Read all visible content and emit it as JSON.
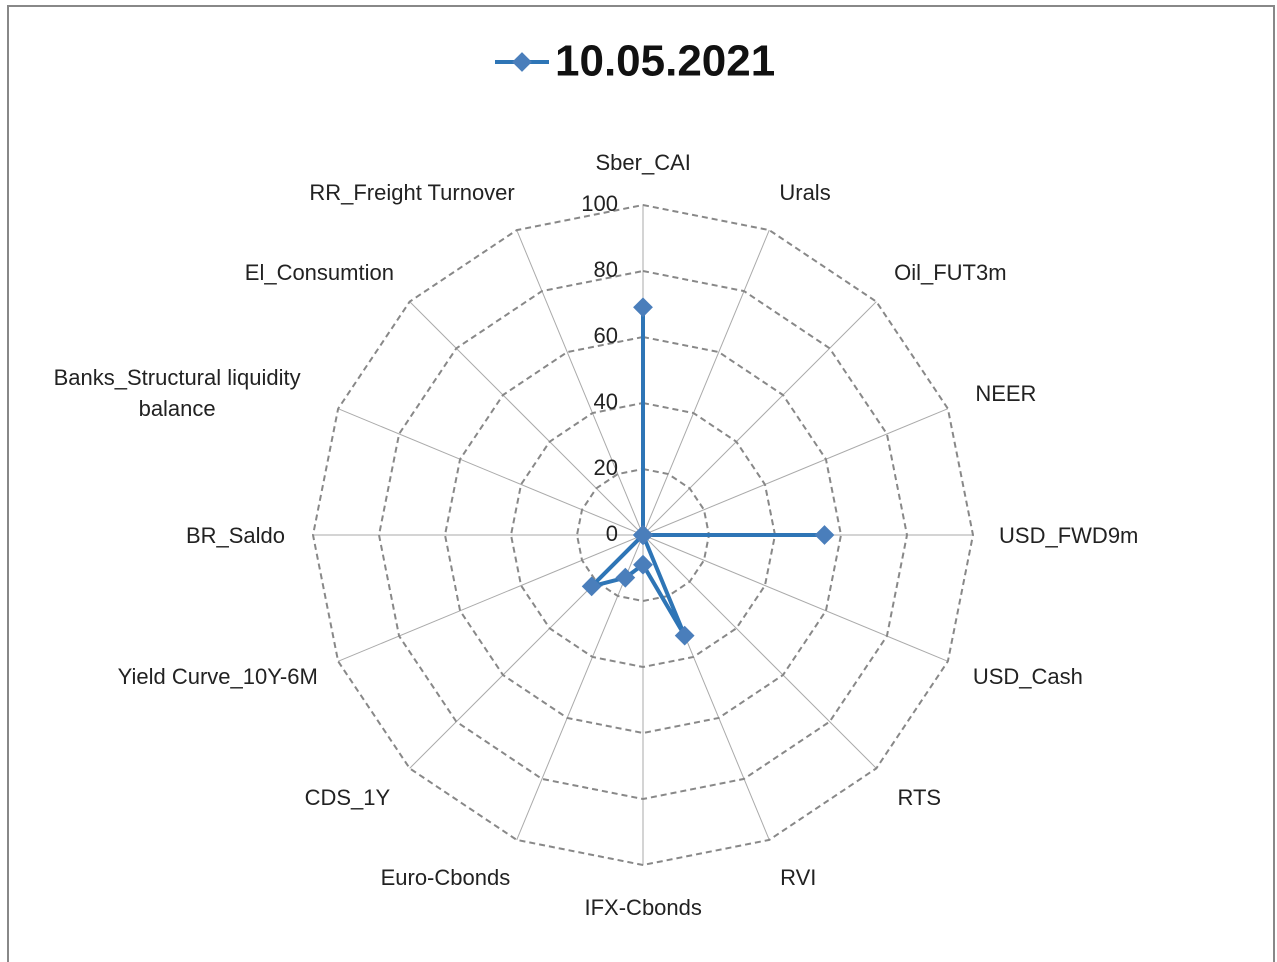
{
  "chart_data": {
    "type": "radar",
    "categories": [
      "Sber_CAI",
      "Urals",
      "Oil_FUT3m",
      "NEER",
      "USD_FWD9m",
      "USD_Cash",
      "RTS",
      "RVI",
      "IFX-Cbonds",
      "Euro-Cbonds",
      "CDS_1Y",
      "Yield Curve_10Y-6M",
      "BR_Saldo",
      "Banks_Structural liquidity balance",
      "El_Consumtion",
      "RR_Freight Turnover"
    ],
    "series": [
      {
        "name": "10.05.2021",
        "color": "#2e75b6",
        "values": [
          69,
          0,
          0,
          0,
          55,
          0,
          0,
          33,
          9,
          14,
          22,
          0,
          0,
          0,
          0,
          0
        ]
      }
    ],
    "rlim": [
      0,
      100
    ],
    "rticks": [
      0,
      20,
      40,
      60,
      80,
      100
    ],
    "legend": "top"
  }
}
